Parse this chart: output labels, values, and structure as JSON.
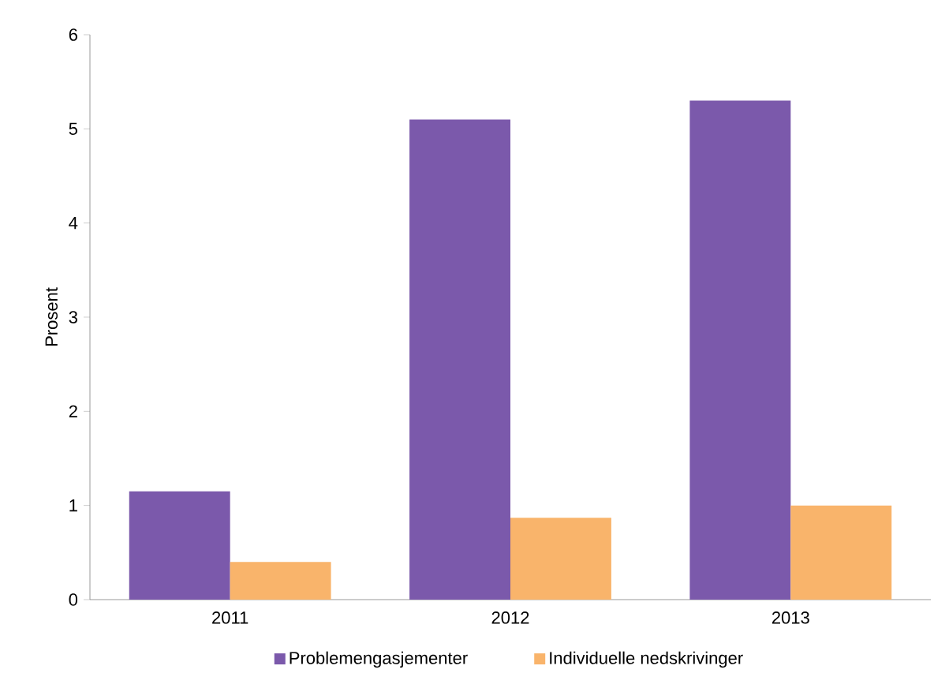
{
  "chart_data": {
    "type": "bar",
    "ylabel": "Prosent",
    "categories": [
      "2011",
      "2012",
      "2013"
    ],
    "series": [
      {
        "name": "Problemengasjementer",
        "color": "#7b59ab",
        "values": [
          1.15,
          5.1,
          5.3
        ]
      },
      {
        "name": "Individuelle nedskrivinger",
        "color": "#f9b46b",
        "values": [
          0.4,
          0.87,
          1.0
        ]
      }
    ],
    "ylim": [
      0,
      6
    ],
    "yticks": [
      0,
      1,
      2,
      3,
      4,
      5,
      6
    ],
    "grid": false,
    "legend": "bottom"
  }
}
